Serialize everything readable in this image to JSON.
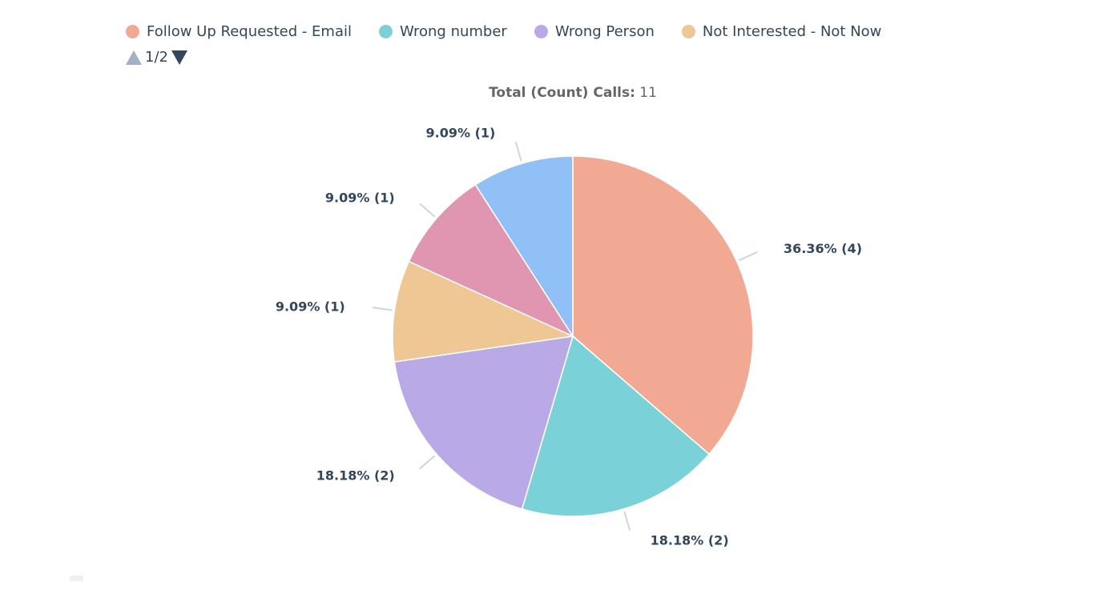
{
  "legend": {
    "items": [
      {
        "label": "Follow Up Requested - Email",
        "color": "#f2a994"
      },
      {
        "label": "Wrong number",
        "color": "#7ad2d8"
      },
      {
        "label": "Wrong Person",
        "color": "#b9a9e6"
      },
      {
        "label": "Not Interested - Not Now",
        "color": "#eec795"
      }
    ],
    "page": "1/2"
  },
  "chart_data": {
    "type": "pie",
    "title_label": "Total (Count) Calls:",
    "title_value": "11",
    "slices": [
      {
        "name": "Follow Up Requested - Email",
        "value": 4,
        "label": "36.36% (4)",
        "color": "#f2a994"
      },
      {
        "name": "Wrong number",
        "value": 2,
        "label": "18.18% (2)",
        "color": "#7ad2d8"
      },
      {
        "name": "Wrong Person",
        "value": 2,
        "label": "18.18% (2)",
        "color": "#b9a9e6"
      },
      {
        "name": "Not Interested - Not Now",
        "value": 1,
        "label": "9.09% (1)",
        "color": "#eec795"
      },
      {
        "value": 1,
        "label": "9.09% (1)",
        "color": "#e095b0"
      },
      {
        "value": 1,
        "label": "9.09% (1)",
        "color": "#91c0f7"
      }
    ]
  }
}
